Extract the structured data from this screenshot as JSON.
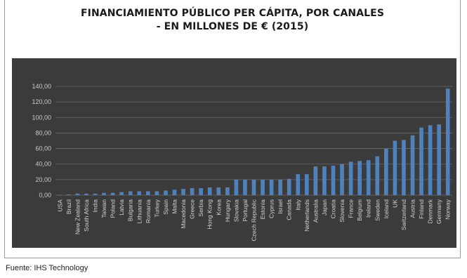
{
  "title_line1": "FINANCIAMIENTO PÚBLICO PER CÁPITA, POR CANALES",
  "title_line2": "- EN MILLONES DE € (2015)",
  "source": "Fuente: IHS Technology",
  "colors": {
    "bar": "#4f81bd",
    "panel": "#3b3b3b",
    "grid": "#6a6a6a",
    "label": "#d2d2d2"
  },
  "chart_data": {
    "type": "bar",
    "title": "FINANCIAMIENTO PÚBLICO PER CÁPITA, POR CANALES - EN MILLONES DE € (2015)",
    "xlabel": "",
    "ylabel": "",
    "ylim": [
      0,
      140
    ],
    "yticks": [
      "0,00",
      "20,00",
      "40,00",
      "60,00",
      "80,00",
      "100,00",
      "120,00",
      "140,00"
    ],
    "grid": true,
    "categories": [
      "USA",
      "Brazil",
      "New Zealand",
      "South Africa",
      "India",
      "Taiwan",
      "Poland",
      "Latvia",
      "Bulgaria",
      "Lithuania",
      "Romania",
      "Turkey",
      "Spain",
      "Malta",
      "Macedonia",
      "Greece",
      "Serbia",
      "Hong Kong",
      "Korea",
      "Hungary",
      "Slovakia",
      "Portugal",
      "Czech Republic",
      "Estonia",
      "Cyprus",
      "Israel",
      "Canada",
      "Italy",
      "Netherlands",
      "Australia",
      "Japan",
      "Croatia",
      "Slovenia",
      "France",
      "Belgium",
      "Ireland",
      "Sweden",
      "Iceland",
      "UK",
      "Switzerland",
      "Austria",
      "Finland",
      "Denmark",
      "Germany",
      "Norway"
    ],
    "values": [
      0.5,
      1,
      2,
      2,
      2,
      3,
      3,
      4,
      5,
      5,
      5,
      5,
      6,
      7,
      8,
      9,
      9,
      10,
      10,
      10,
      20,
      20,
      20,
      20,
      20,
      20,
      21,
      27,
      27,
      37,
      37,
      38,
      40,
      43,
      44,
      45,
      50,
      60,
      70,
      71,
      77,
      87,
      90,
      91,
      137
    ]
  }
}
